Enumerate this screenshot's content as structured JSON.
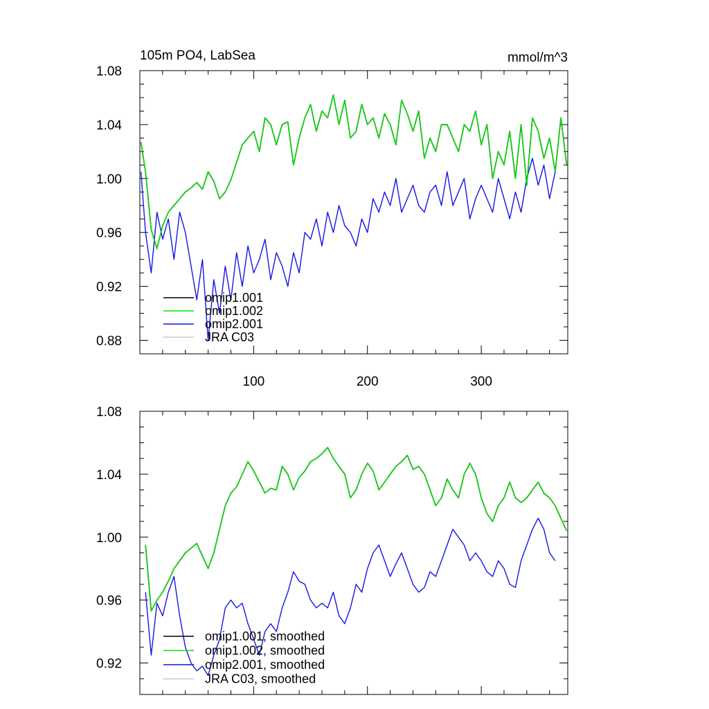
{
  "chart_data": [
    {
      "type": "line",
      "title": "105m PO4, LabSea",
      "units": "mmol/m^3",
      "xlim": [
        0,
        376
      ],
      "ylim": [
        0.87,
        1.08
      ],
      "yticks": [
        0.88,
        0.92,
        0.96,
        1.0,
        1.04,
        1.08
      ],
      "ytick_labels": [
        "0.88",
        "0.92",
        "0.96",
        "1.00",
        "1.04",
        "1.08"
      ],
      "xticks": [
        100,
        200,
        300
      ],
      "xtick_labels": [
        "100",
        "200",
        "300"
      ],
      "legend_position": "bottom-left",
      "series": [
        {
          "name": "omip1.001",
          "color": "#000000",
          "x": [
            1,
            5,
            10,
            15,
            20,
            25,
            30,
            35,
            40,
            45,
            50,
            55,
            60,
            65,
            70,
            75,
            80,
            85,
            90,
            95,
            100,
            105,
            110,
            115,
            120,
            125,
            130,
            135,
            140,
            145,
            150,
            155,
            160,
            165,
            170,
            175,
            180,
            185,
            190,
            195,
            200,
            205,
            210,
            215,
            220,
            225,
            230,
            235,
            240,
            245,
            250,
            255,
            260,
            265,
            270,
            275,
            280,
            285,
            290,
            295,
            300,
            305,
            310,
            315,
            320,
            325,
            330,
            335,
            340,
            345,
            350,
            355,
            360,
            365,
            370,
            375
          ],
          "values": [
            1.027,
            1.005,
            0.962,
            0.948,
            0.965,
            0.975,
            0.98,
            0.985,
            0.99,
            0.993,
            0.997,
            0.992,
            1.005,
            0.998,
            0.985,
            0.99,
            0.999,
            1.012,
            1.025,
            1.03,
            1.035,
            1.02,
            1.045,
            1.04,
            1.025,
            1.04,
            1.042,
            1.01,
            1.03,
            1.045,
            1.055,
            1.035,
            1.05,
            1.045,
            1.062,
            1.04,
            1.058,
            1.03,
            1.035,
            1.055,
            1.04,
            1.045,
            1.03,
            1.048,
            1.04,
            1.025,
            1.058,
            1.048,
            1.035,
            1.05,
            1.015,
            1.03,
            1.02,
            1.04,
            1.04,
            1.03,
            1.02,
            1.04,
            1.035,
            1.05,
            1.025,
            1.04,
            1.0,
            1.02,
            1.01,
            1.035,
            1.0,
            1.04,
            0.995,
            1.045,
            1.035,
            1.015,
            1.03,
            1.005,
            1.045,
            1.01
          ]
        },
        {
          "name": "omip1.002",
          "color": "#00e600",
          "x": [
            1,
            5,
            10,
            15,
            20,
            25,
            30,
            35,
            40,
            45,
            50,
            55,
            60,
            65,
            70,
            75,
            80,
            85,
            90,
            95,
            100,
            105,
            110,
            115,
            120,
            125,
            130,
            135,
            140,
            145,
            150,
            155,
            160,
            165,
            170,
            175,
            180,
            185,
            190,
            195,
            200,
            205,
            210,
            215,
            220,
            225,
            230,
            235,
            240,
            245,
            250,
            255,
            260,
            265,
            270,
            275,
            280,
            285,
            290,
            295,
            300,
            305,
            310,
            315,
            320,
            325,
            330,
            335,
            340,
            345,
            350,
            355,
            360,
            365,
            370,
            375
          ],
          "values": [
            1.027,
            1.005,
            0.962,
            0.948,
            0.965,
            0.975,
            0.98,
            0.985,
            0.99,
            0.993,
            0.997,
            0.992,
            1.005,
            0.998,
            0.985,
            0.99,
            0.999,
            1.012,
            1.025,
            1.03,
            1.035,
            1.02,
            1.045,
            1.04,
            1.025,
            1.04,
            1.042,
            1.01,
            1.03,
            1.045,
            1.055,
            1.035,
            1.05,
            1.045,
            1.062,
            1.04,
            1.058,
            1.03,
            1.035,
            1.055,
            1.04,
            1.045,
            1.03,
            1.048,
            1.04,
            1.025,
            1.058,
            1.048,
            1.035,
            1.05,
            1.015,
            1.03,
            1.02,
            1.04,
            1.04,
            1.03,
            1.02,
            1.04,
            1.035,
            1.05,
            1.025,
            1.04,
            1.0,
            1.02,
            1.01,
            1.035,
            1.0,
            1.04,
            0.995,
            1.045,
            1.035,
            1.015,
            1.03,
            1.005,
            1.045,
            1.01
          ]
        },
        {
          "name": "omip2.001",
          "color": "#1414e6",
          "x": [
            1,
            5,
            10,
            15,
            20,
            25,
            30,
            35,
            40,
            45,
            50,
            55,
            60,
            65,
            70,
            75,
            80,
            85,
            90,
            95,
            100,
            105,
            110,
            115,
            120,
            125,
            130,
            135,
            140,
            145,
            150,
            155,
            160,
            165,
            170,
            175,
            180,
            185,
            190,
            195,
            200,
            205,
            210,
            215,
            220,
            225,
            230,
            235,
            240,
            245,
            250,
            255,
            260,
            265,
            270,
            275,
            280,
            285,
            290,
            295,
            300,
            305,
            310,
            315,
            320,
            325,
            330,
            335,
            340,
            345,
            350,
            355,
            360,
            365
          ],
          "values": [
            1.005,
            0.96,
            0.93,
            0.975,
            0.955,
            0.97,
            0.94,
            0.975,
            0.96,
            0.935,
            0.91,
            0.94,
            0.88,
            0.925,
            0.9,
            0.935,
            0.91,
            0.945,
            0.92,
            0.95,
            0.93,
            0.94,
            0.955,
            0.925,
            0.945,
            0.935,
            0.92,
            0.945,
            0.93,
            0.96,
            0.955,
            0.97,
            0.95,
            0.975,
            0.96,
            0.98,
            0.965,
            0.96,
            0.95,
            0.97,
            0.96,
            0.985,
            0.975,
            0.99,
            0.98,
            1.0,
            0.975,
            0.985,
            0.995,
            0.98,
            0.975,
            0.99,
            0.995,
            0.98,
            1.005,
            0.98,
            0.99,
            1.0,
            0.97,
            0.985,
            0.995,
            0.985,
            0.975,
            1.0,
            0.985,
            0.97,
            0.99,
            0.975,
            1.0,
            1.015,
            0.995,
            1.01,
            0.985,
            1.005
          ]
        },
        {
          "name": "JRA C03",
          "color": "#c8c8c8",
          "x": [],
          "values": []
        }
      ]
    },
    {
      "type": "line",
      "title": "",
      "xlim": [
        0,
        376
      ],
      "ylim": [
        0.9,
        1.08
      ],
      "yticks": [
        0.92,
        0.96,
        1.0,
        1.04,
        1.08
      ],
      "ytick_labels": [
        "0.92",
        "0.96",
        "1.00",
        "1.04",
        "1.08"
      ],
      "xticks": [
        100,
        200,
        300
      ],
      "legend_position": "bottom-left",
      "series": [
        {
          "name": "omip1.001, smoothed",
          "color": "#000000",
          "x": [
            5,
            10,
            15,
            20,
            25,
            30,
            35,
            40,
            45,
            50,
            55,
            60,
            65,
            70,
            75,
            80,
            85,
            90,
            95,
            100,
            105,
            110,
            115,
            120,
            125,
            130,
            135,
            140,
            145,
            150,
            155,
            160,
            165,
            170,
            175,
            180,
            185,
            190,
            195,
            200,
            205,
            210,
            215,
            220,
            225,
            230,
            235,
            240,
            245,
            250,
            255,
            260,
            265,
            270,
            275,
            280,
            285,
            290,
            295,
            300,
            305,
            310,
            315,
            320,
            325,
            330,
            335,
            340,
            345,
            350,
            355,
            360,
            365,
            370,
            375
          ],
          "values": [
            0.995,
            0.953,
            0.96,
            0.965,
            0.972,
            0.98,
            0.985,
            0.99,
            0.993,
            0.996,
            0.988,
            0.98,
            0.99,
            1.005,
            1.02,
            1.028,
            1.032,
            1.04,
            1.048,
            1.042,
            1.035,
            1.028,
            1.031,
            1.03,
            1.045,
            1.04,
            1.03,
            1.038,
            1.042,
            1.048,
            1.05,
            1.053,
            1.057,
            1.05,
            1.045,
            1.04,
            1.025,
            1.03,
            1.04,
            1.047,
            1.042,
            1.03,
            1.035,
            1.04,
            1.045,
            1.048,
            1.052,
            1.043,
            1.045,
            1.04,
            1.03,
            1.02,
            1.025,
            1.037,
            1.03,
            1.025,
            1.04,
            1.047,
            1.04,
            1.025,
            1.015,
            1.01,
            1.02,
            1.025,
            1.035,
            1.025,
            1.022,
            1.025,
            1.03,
            1.035,
            1.028,
            1.025,
            1.02,
            1.012,
            1.004
          ]
        },
        {
          "name": "omip1.002, smoothed",
          "color": "#00e600",
          "x": [
            5,
            10,
            15,
            20,
            25,
            30,
            35,
            40,
            45,
            50,
            55,
            60,
            65,
            70,
            75,
            80,
            85,
            90,
            95,
            100,
            105,
            110,
            115,
            120,
            125,
            130,
            135,
            140,
            145,
            150,
            155,
            160,
            165,
            170,
            175,
            180,
            185,
            190,
            195,
            200,
            205,
            210,
            215,
            220,
            225,
            230,
            235,
            240,
            245,
            250,
            255,
            260,
            265,
            270,
            275,
            280,
            285,
            290,
            295,
            300,
            305,
            310,
            315,
            320,
            325,
            330,
            335,
            340,
            345,
            350,
            355,
            360,
            365,
            370,
            375
          ],
          "values": [
            0.995,
            0.953,
            0.96,
            0.965,
            0.972,
            0.98,
            0.985,
            0.99,
            0.993,
            0.996,
            0.988,
            0.98,
            0.99,
            1.005,
            1.02,
            1.028,
            1.032,
            1.04,
            1.048,
            1.042,
            1.035,
            1.028,
            1.031,
            1.03,
            1.045,
            1.04,
            1.03,
            1.038,
            1.042,
            1.048,
            1.05,
            1.053,
            1.057,
            1.05,
            1.045,
            1.04,
            1.025,
            1.03,
            1.04,
            1.047,
            1.042,
            1.03,
            1.035,
            1.04,
            1.045,
            1.048,
            1.052,
            1.043,
            1.045,
            1.04,
            1.03,
            1.02,
            1.025,
            1.037,
            1.03,
            1.025,
            1.04,
            1.047,
            1.04,
            1.025,
            1.015,
            1.01,
            1.02,
            1.025,
            1.035,
            1.025,
            1.022,
            1.025,
            1.03,
            1.035,
            1.028,
            1.025,
            1.02,
            1.012,
            1.004
          ]
        },
        {
          "name": "omip2.001, smoothed",
          "color": "#1414e6",
          "x": [
            5,
            10,
            15,
            20,
            25,
            30,
            35,
            40,
            45,
            50,
            55,
            60,
            65,
            70,
            75,
            80,
            85,
            90,
            95,
            100,
            105,
            110,
            115,
            120,
            125,
            130,
            135,
            140,
            145,
            150,
            155,
            160,
            165,
            170,
            175,
            180,
            185,
            190,
            195,
            200,
            205,
            210,
            215,
            220,
            225,
            230,
            235,
            240,
            245,
            250,
            255,
            260,
            265,
            270,
            275,
            280,
            285,
            290,
            295,
            300,
            305,
            310,
            315,
            320,
            325,
            330,
            335,
            340,
            345,
            350,
            355,
            360,
            365
          ],
          "values": [
            0.965,
            0.925,
            0.958,
            0.95,
            0.965,
            0.975,
            0.95,
            0.93,
            0.92,
            0.915,
            0.918,
            0.912,
            0.925,
            0.935,
            0.955,
            0.96,
            0.955,
            0.958,
            0.945,
            0.935,
            0.925,
            0.94,
            0.945,
            0.94,
            0.955,
            0.965,
            0.978,
            0.972,
            0.97,
            0.96,
            0.955,
            0.958,
            0.955,
            0.965,
            0.95,
            0.945,
            0.955,
            0.97,
            0.965,
            0.98,
            0.99,
            0.995,
            0.985,
            0.975,
            0.983,
            0.99,
            0.98,
            0.97,
            0.965,
            0.968,
            0.978,
            0.975,
            0.985,
            0.995,
            1.005,
            1.0,
            0.995,
            0.985,
            0.99,
            0.985,
            0.978,
            0.975,
            0.985,
            0.98,
            0.97,
            0.968,
            0.985,
            0.995,
            1.005,
            1.012,
            1.005,
            0.99,
            0.985
          ]
        },
        {
          "name": "JRA C03, smoothed",
          "color": "#c8c8c8",
          "x": [],
          "values": []
        }
      ]
    }
  ]
}
